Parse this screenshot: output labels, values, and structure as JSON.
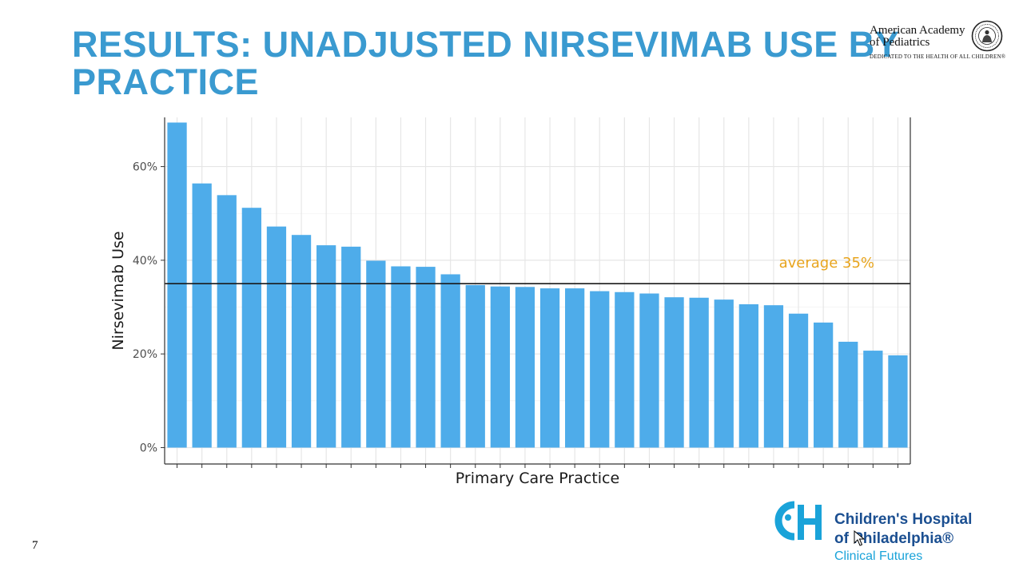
{
  "slide": {
    "title": "RESULTS: UNADJUSTED NIRSEVIMAB USE BY PRACTICE",
    "page_number": "7",
    "title_color": "#3a9ad0"
  },
  "logos": {
    "aap": {
      "line1": "American Academy",
      "line2": "of Pediatrics",
      "tagline": "DEDICATED TO THE HEALTH OF ALL CHILDREN®"
    },
    "chop": {
      "line1": "Children's Hospital",
      "line2": "of Philadelphia®",
      "line3": "Clinical Futures",
      "color": "#1aa3d9",
      "text_color": "#1b4f91"
    }
  },
  "chart_data": {
    "type": "bar",
    "title": "",
    "xlabel": "Primary Care Practice",
    "ylabel": "Nirsevimab Use",
    "y_unit": "%",
    "ylim": [
      -3.5,
      70.5
    ],
    "yticks": [
      0,
      20,
      40,
      60
    ],
    "ytick_labels": [
      "0%",
      "20%",
      "40%",
      "60%"
    ],
    "values": [
      69.4,
      56.4,
      53.9,
      51.2,
      47.2,
      45.4,
      43.2,
      42.9,
      39.9,
      38.7,
      38.6,
      37.0,
      34.7,
      34.4,
      34.3,
      34.0,
      34.0,
      33.4,
      33.2,
      32.9,
      32.1,
      32.0,
      31.6,
      30.6,
      30.4,
      28.6,
      26.7,
      22.6,
      20.7,
      19.7
    ],
    "bar_color": "#4eacea",
    "reference_line": {
      "value": 35,
      "label": "average 35%",
      "label_color": "#e8a41c",
      "line_color": "#1a1a1a"
    },
    "grid": true,
    "legend": "none"
  }
}
